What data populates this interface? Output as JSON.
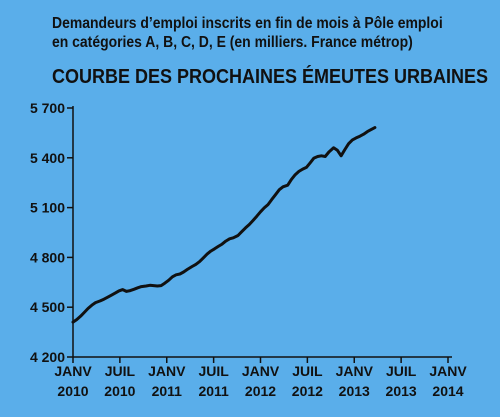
{
  "chart_data": {
    "type": "line",
    "subtitle_line1": "Demandeurs d’emploi inscrits en fin de mois à Pôle emploi",
    "subtitle_line2": "en catégories A, B, C, D, E (en milliers. France métrop)",
    "title": "COURBE DES PROCHAINES ÉMEUTES URBAINES",
    "ylim": [
      4200,
      5700
    ],
    "yticks": [
      4200,
      4500,
      4800,
      5100,
      5400,
      5700
    ],
    "ytick_labels": [
      "4 200",
      "4 500",
      "4 800",
      "5 100",
      "5 400",
      "5 700"
    ],
    "xlim": [
      2010.0,
      2014.0
    ],
    "xticks": [
      {
        "x": 2010.0,
        "line1": "JANV",
        "line2": "2010"
      },
      {
        "x": 2010.5,
        "line1": "JUIL",
        "line2": "2010"
      },
      {
        "x": 2011.0,
        "line1": "JANV",
        "line2": "2011"
      },
      {
        "x": 2011.5,
        "line1": "JUIL",
        "line2": "2011"
      },
      {
        "x": 2012.0,
        "line1": "JANV",
        "line2": "2012"
      },
      {
        "x": 2012.5,
        "line1": "JUIL",
        "line2": "2012"
      },
      {
        "x": 2013.0,
        "line1": "JANV",
        "line2": "2013"
      },
      {
        "x": 2013.5,
        "line1": "JUIL",
        "line2": "2013"
      },
      {
        "x": 2014.0,
        "line1": "JANV",
        "line2": "2014"
      }
    ],
    "grid": false,
    "series": [
      {
        "color": "#111111",
        "points": [
          [
            2010.0,
            4410
          ],
          [
            2010.04,
            4425
          ],
          [
            2010.08,
            4445
          ],
          [
            2010.12,
            4468
          ],
          [
            2010.16,
            4492
          ],
          [
            2010.2,
            4512
          ],
          [
            2010.24,
            4528
          ],
          [
            2010.29,
            4538
          ],
          [
            2010.33,
            4548
          ],
          [
            2010.37,
            4560
          ],
          [
            2010.41,
            4572
          ],
          [
            2010.45,
            4585
          ],
          [
            2010.49,
            4598
          ],
          [
            2010.53,
            4606
          ],
          [
            2010.57,
            4595
          ],
          [
            2010.61,
            4600
          ],
          [
            2010.65,
            4608
          ],
          [
            2010.69,
            4617
          ],
          [
            2010.73,
            4624
          ],
          [
            2010.78,
            4628
          ],
          [
            2010.82,
            4632
          ],
          [
            2010.86,
            4630
          ],
          [
            2010.9,
            4628
          ],
          [
            2010.94,
            4630
          ],
          [
            2010.98,
            4645
          ],
          [
            2011.02,
            4662
          ],
          [
            2011.06,
            4683
          ],
          [
            2011.1,
            4695
          ],
          [
            2011.14,
            4700
          ],
          [
            2011.18,
            4712
          ],
          [
            2011.22,
            4728
          ],
          [
            2011.27,
            4745
          ],
          [
            2011.31,
            4758
          ],
          [
            2011.35,
            4775
          ],
          [
            2011.39,
            4797
          ],
          [
            2011.43,
            4820
          ],
          [
            2011.47,
            4838
          ],
          [
            2011.51,
            4852
          ],
          [
            2011.55,
            4866
          ],
          [
            2011.59,
            4880
          ],
          [
            2011.63,
            4898
          ],
          [
            2011.67,
            4912
          ],
          [
            2011.71,
            4918
          ],
          [
            2011.76,
            4932
          ],
          [
            2011.8,
            4955
          ],
          [
            2011.84,
            4978
          ],
          [
            2011.88,
            4998
          ],
          [
            2011.92,
            5022
          ],
          [
            2011.96,
            5048
          ],
          [
            2012.0,
            5075
          ],
          [
            2012.04,
            5098
          ],
          [
            2012.08,
            5118
          ],
          [
            2012.12,
            5148
          ],
          [
            2012.16,
            5178
          ],
          [
            2012.2,
            5208
          ],
          [
            2012.24,
            5225
          ],
          [
            2012.29,
            5235
          ],
          [
            2012.33,
            5270
          ],
          [
            2012.37,
            5298
          ],
          [
            2012.41,
            5318
          ],
          [
            2012.45,
            5332
          ],
          [
            2012.49,
            5342
          ],
          [
            2012.53,
            5370
          ],
          [
            2012.57,
            5398
          ],
          [
            2012.61,
            5408
          ],
          [
            2012.65,
            5412
          ],
          [
            2012.69,
            5408
          ],
          [
            2012.73,
            5435
          ],
          [
            2012.78,
            5460
          ],
          [
            2012.82,
            5445
          ],
          [
            2012.86,
            5412
          ],
          [
            2012.9,
            5450
          ],
          [
            2012.94,
            5485
          ],
          [
            2012.98,
            5508
          ],
          [
            2013.02,
            5520
          ],
          [
            2013.06,
            5530
          ],
          [
            2013.1,
            5542
          ],
          [
            2013.14,
            5558
          ],
          [
            2013.18,
            5570
          ],
          [
            2013.22,
            5582
          ]
        ]
      }
    ]
  }
}
